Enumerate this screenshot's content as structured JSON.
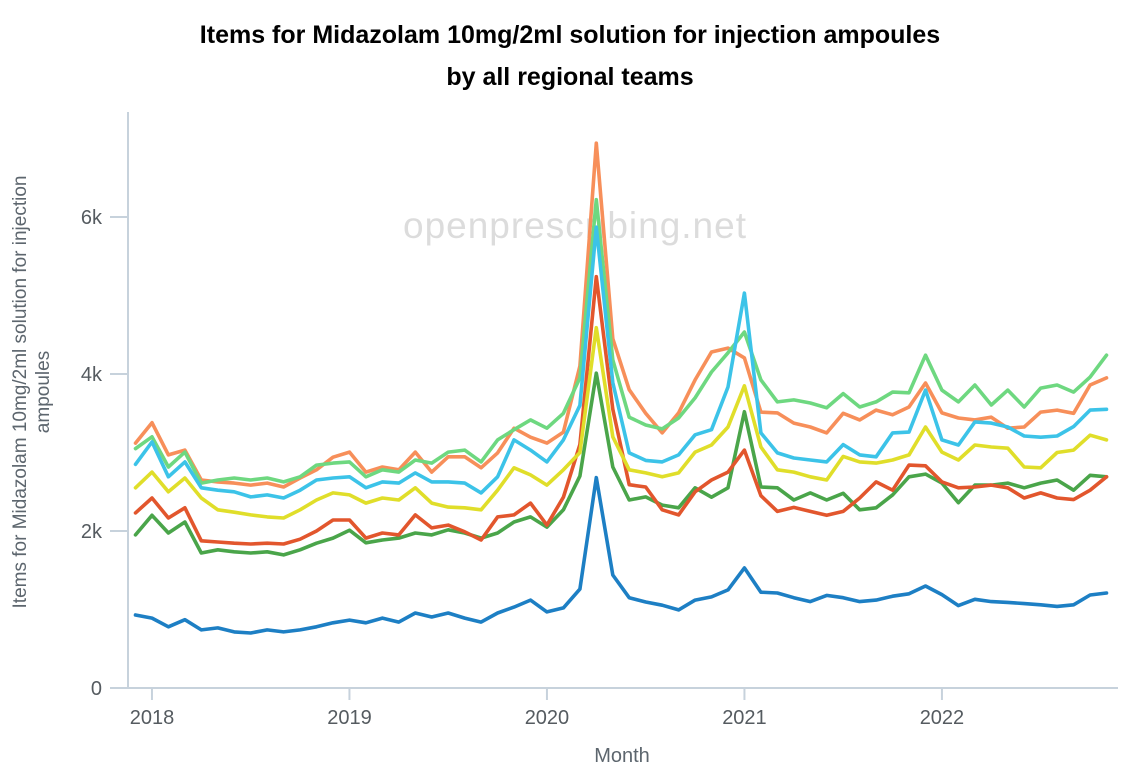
{
  "page": {
    "title_line1": "Items for Midazolam 10mg/2ml solution for injection ampoules",
    "title_line2": "by all regional teams",
    "watermark": "openprescribing.net"
  },
  "chart_data": {
    "type": "line",
    "title": "Items for Midazolam 10mg/2ml solution for injection ampoules by all regional teams",
    "xlabel": "Month",
    "ylabel": "Items for Midazolam 10mg/2ml solution for injection ampoules",
    "ylabel_lines": [
      "Items for Midazolam 10mg/2ml solution for injection",
      "ampoules"
    ],
    "grid": false,
    "legend": "none",
    "ylim": [
      0,
      7300
    ],
    "y_ticks": [
      {
        "label": "0",
        "value": 0
      },
      {
        "label": "2k",
        "value": 2000
      },
      {
        "label": "4k",
        "value": 4000
      },
      {
        "label": "6k",
        "value": 6000
      }
    ],
    "x_tick_labels": [
      "2018",
      "2019",
      "2020",
      "2021",
      "2022"
    ],
    "months": [
      "2017-12",
      "2018-01",
      "2018-02",
      "2018-03",
      "2018-04",
      "2018-05",
      "2018-06",
      "2018-07",
      "2018-08",
      "2018-09",
      "2018-10",
      "2018-11",
      "2018-12",
      "2019-01",
      "2019-02",
      "2019-03",
      "2019-04",
      "2019-05",
      "2019-06",
      "2019-07",
      "2019-08",
      "2019-09",
      "2019-10",
      "2019-11",
      "2019-12",
      "2020-01",
      "2020-02",
      "2020-03",
      "2020-04",
      "2020-05",
      "2020-06",
      "2020-07",
      "2020-08",
      "2020-09",
      "2020-10",
      "2020-11",
      "2020-12",
      "2021-01",
      "2021-02",
      "2021-03",
      "2021-04",
      "2021-05",
      "2021-06",
      "2021-07",
      "2021-08",
      "2021-09",
      "2021-10",
      "2021-11",
      "2021-12",
      "2022-01",
      "2022-02",
      "2022-03",
      "2022-04",
      "2022-05",
      "2022-06",
      "2022-07",
      "2022-08",
      "2022-09",
      "2022-10",
      "2022-11"
    ],
    "series": [
      {
        "name": "blue",
        "color": "#1d7fc4",
        "values": [
          930,
          890,
          780,
          870,
          740,
          765,
          715,
          700,
          740,
          715,
          740,
          780,
          830,
          865,
          830,
          890,
          840,
          955,
          905,
          955,
          890,
          840,
          955,
          1030,
          1120,
          970,
          1020,
          1260,
          2680,
          1440,
          1150,
          1095,
          1055,
          995,
          1120,
          1160,
          1250,
          1530,
          1220,
          1210,
          1150,
          1100,
          1180,
          1150,
          1100,
          1120,
          1170,
          1200,
          1300,
          1190,
          1050,
          1130,
          1100,
          1090,
          1075,
          1060,
          1040,
          1060,
          1185,
          1210
        ]
      },
      {
        "name": "green",
        "color": "#4aa54a",
        "values": [
          1950,
          2200,
          1975,
          2115,
          1720,
          1760,
          1735,
          1720,
          1735,
          1695,
          1760,
          1845,
          1910,
          2010,
          1850,
          1885,
          1910,
          1975,
          1950,
          2015,
          1975,
          1910,
          1975,
          2115,
          2180,
          2050,
          2270,
          2700,
          4010,
          2815,
          2395,
          2435,
          2330,
          2295,
          2550,
          2430,
          2550,
          3520,
          2560,
          2550,
          2395,
          2485,
          2395,
          2480,
          2270,
          2295,
          2460,
          2690,
          2725,
          2610,
          2360,
          2585,
          2585,
          2610,
          2550,
          2610,
          2650,
          2520,
          2710,
          2690
        ]
      },
      {
        "name": "red",
        "color": "#e2562d",
        "values": [
          2230,
          2420,
          2165,
          2295,
          1875,
          1860,
          1845,
          1835,
          1845,
          1835,
          1895,
          2000,
          2140,
          2140,
          1910,
          1975,
          1950,
          2205,
          2040,
          2075,
          1990,
          1885,
          2180,
          2205,
          2355,
          2075,
          2430,
          3100,
          5240,
          3550,
          2590,
          2560,
          2270,
          2205,
          2500,
          2650,
          2750,
          3030,
          2450,
          2250,
          2300,
          2250,
          2200,
          2250,
          2420,
          2625,
          2520,
          2840,
          2830,
          2625,
          2550,
          2560,
          2585,
          2550,
          2420,
          2485,
          2420,
          2400,
          2520,
          2690
        ]
      },
      {
        "name": "yellow",
        "color": "#e0de2a",
        "values": [
          2550,
          2750,
          2500,
          2675,
          2420,
          2270,
          2240,
          2205,
          2180,
          2165,
          2270,
          2395,
          2485,
          2460,
          2355,
          2420,
          2395,
          2550,
          2355,
          2305,
          2295,
          2270,
          2520,
          2805,
          2715,
          2585,
          2780,
          3000,
          4590,
          3200,
          2780,
          2740,
          2690,
          2740,
          3005,
          3095,
          3325,
          3850,
          3070,
          2780,
          2750,
          2690,
          2650,
          2950,
          2880,
          2865,
          2905,
          2970,
          3325,
          3005,
          2905,
          3095,
          3070,
          3055,
          2815,
          2805,
          3000,
          3030,
          3220,
          3160
        ]
      },
      {
        "name": "orange",
        "color": "#f78f5a",
        "values": [
          3120,
          3380,
          2970,
          3030,
          2650,
          2625,
          2610,
          2585,
          2610,
          2560,
          2675,
          2780,
          2940,
          3005,
          2750,
          2815,
          2780,
          3005,
          2750,
          2945,
          2945,
          2805,
          2995,
          3310,
          3195,
          3120,
          3260,
          4100,
          6940,
          4450,
          3800,
          3500,
          3250,
          3505,
          3925,
          4280,
          4330,
          4205,
          3515,
          3505,
          3375,
          3325,
          3250,
          3500,
          3415,
          3540,
          3480,
          3580,
          3885,
          3505,
          3440,
          3415,
          3450,
          3310,
          3325,
          3515,
          3540,
          3500,
          3860,
          3950
        ]
      },
      {
        "name": "light-green",
        "color": "#6ed880",
        "values": [
          3050,
          3200,
          2815,
          3005,
          2610,
          2650,
          2675,
          2650,
          2675,
          2625,
          2690,
          2840,
          2865,
          2880,
          2690,
          2780,
          2750,
          2905,
          2865,
          3005,
          3030,
          2880,
          3160,
          3290,
          3415,
          3310,
          3500,
          3950,
          6220,
          4180,
          3450,
          3350,
          3300,
          3440,
          3695,
          4025,
          4270,
          4535,
          3925,
          3645,
          3670,
          3630,
          3570,
          3750,
          3580,
          3645,
          3770,
          3760,
          4240,
          3795,
          3645,
          3860,
          3605,
          3795,
          3580,
          3820,
          3860,
          3770,
          3960,
          4240
        ]
      },
      {
        "name": "cyan",
        "color": "#3cc3e8",
        "values": [
          2850,
          3135,
          2690,
          2880,
          2550,
          2520,
          2500,
          2435,
          2460,
          2420,
          2520,
          2650,
          2675,
          2690,
          2550,
          2625,
          2610,
          2740,
          2625,
          2625,
          2610,
          2485,
          2690,
          3160,
          3030,
          2880,
          3160,
          3600,
          5870,
          3890,
          2995,
          2900,
          2880,
          2970,
          3225,
          3290,
          3835,
          5030,
          3250,
          2995,
          2930,
          2905,
          2880,
          3100,
          2970,
          2945,
          3250,
          3260,
          3795,
          3160,
          3095,
          3390,
          3375,
          3325,
          3210,
          3195,
          3210,
          3330,
          3540,
          3550
        ]
      }
    ]
  }
}
